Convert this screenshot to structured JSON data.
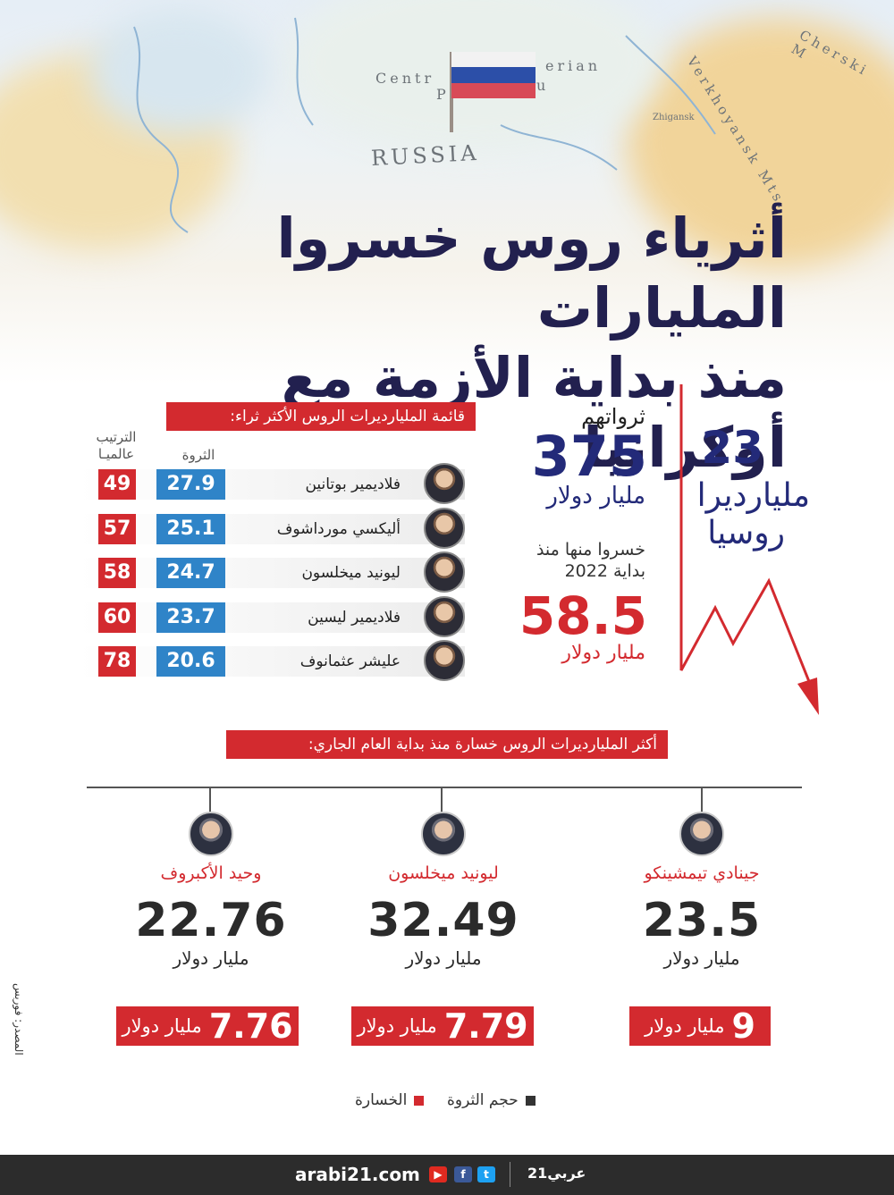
{
  "map": {
    "label_country": "RUSSIA",
    "label_central": "Centr",
    "label_siberian": "erian",
    "label_plateau": "P",
    "label_u": "u",
    "label_mts": "Verkhoyansk Mts.",
    "label_cherski": "Cherski M",
    "label_zhigansk": "Zhigansk"
  },
  "title": {
    "line1": "أثرياء روس خسروا المليارات",
    "line2": "منذ بداية الأزمة مع أوكرانيا"
  },
  "list": {
    "heading": "قائمة المليارديرات الروس الأكثر ثراء:",
    "col_worth": "الثروة",
    "col_rank_1": "الترتيب",
    "col_rank_2": "عالميـا",
    "rows": [
      {
        "name": "فلاديمير بوتانين",
        "worth": "27.9",
        "rank": "49"
      },
      {
        "name": "أليكسي مورداشوف",
        "worth": "25.1",
        "rank": "57"
      },
      {
        "name": "ليونيد ميخلسون",
        "worth": "24.7",
        "rank": "58"
      },
      {
        "name": "فلاديمير ليسين",
        "worth": "23.7",
        "rank": "60"
      },
      {
        "name": "عليشر عثمانوف",
        "worth": "20.6",
        "rank": "78"
      }
    ]
  },
  "stats": {
    "count": "23",
    "count_label_1": "مليارديرا",
    "count_label_2": "روسيا",
    "wealth_label": "ثرواتهم",
    "wealth_value": "375",
    "wealth_unit": "مليار دولار",
    "lost_label_1": "خسروا منها منذ",
    "lost_label_2": "بداية 2022",
    "lost_value": "58.5",
    "lost_unit": "مليار دولار"
  },
  "losers": {
    "heading": "أكثر المليارديرات الروس خسارة منذ بداية العام الجاري:",
    "items": [
      {
        "name": "جينادي تيمشينكو",
        "wealth": "23.5",
        "unit": "مليار دولار",
        "loss": "9",
        "loss_unit": "مليار دولار"
      },
      {
        "name": "ليونيد ميخلسون",
        "wealth": "32.49",
        "unit": "مليار دولار",
        "loss": "7.79",
        "loss_unit": "مليار دولار"
      },
      {
        "name": "وحيد الأكبروف",
        "wealth": "22.76",
        "unit": "مليار دولار",
        "loss": "7.76",
        "loss_unit": "مليار دولار"
      }
    ]
  },
  "legend": {
    "wealth": "حجم الثروة",
    "loss": "الخسارة"
  },
  "credit": "المصدر: فوربس",
  "footer": {
    "site": "arabi21.com",
    "brand": "عربي21"
  },
  "colors": {
    "red": "#d32a2f",
    "blue": "#2f84c8",
    "navy": "#232a79"
  }
}
